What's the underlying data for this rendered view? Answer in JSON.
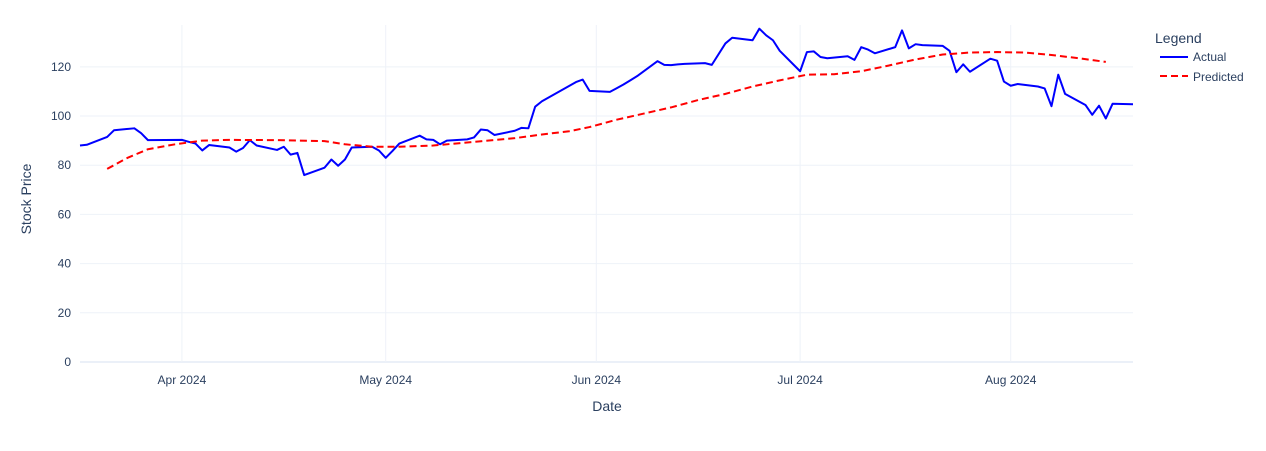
{
  "chart_data": {
    "type": "line",
    "xlabel": "Date",
    "ylabel": "Stock Price",
    "x_tick_labels": [
      "Apr 2024",
      "May 2024",
      "Jun 2024",
      "Jul 2024",
      "Aug 2024"
    ],
    "x_tick_dates": [
      "2024-04-01",
      "2024-05-01",
      "2024-06-01",
      "2024-07-01",
      "2024-08-01"
    ],
    "xlim": [
      "2024-03-17",
      "2024-08-19"
    ],
    "y_ticks": [
      0,
      20,
      40,
      60,
      80,
      100,
      120
    ],
    "ylim": [
      0,
      137
    ],
    "grid": true,
    "legend": {
      "title": "Legend",
      "placement": "top-right"
    },
    "series": [
      {
        "name": "Actual",
        "color": "#0000ff",
        "dash": "solid",
        "points": [
          [
            "2024-03-17",
            88
          ],
          [
            "2024-03-18",
            88.3
          ],
          [
            "2024-03-21",
            91.5
          ],
          [
            "2024-03-22",
            94.2
          ],
          [
            "2024-03-25",
            95
          ],
          [
            "2024-03-26",
            93
          ],
          [
            "2024-03-27",
            90.2
          ],
          [
            "2024-04-01",
            90.3
          ],
          [
            "2024-04-02",
            89.5
          ],
          [
            "2024-04-03",
            88.8
          ],
          [
            "2024-04-04",
            86
          ],
          [
            "2024-04-05",
            88.2
          ],
          [
            "2024-04-08",
            87.2
          ],
          [
            "2024-04-09",
            85.5
          ],
          [
            "2024-04-10",
            87
          ],
          [
            "2024-04-11",
            90.2
          ],
          [
            "2024-04-12",
            88
          ],
          [
            "2024-04-15",
            86.2
          ],
          [
            "2024-04-16",
            87.5
          ],
          [
            "2024-04-17",
            84.3
          ],
          [
            "2024-04-18",
            85
          ],
          [
            "2024-04-19",
            76
          ],
          [
            "2024-04-22",
            79
          ],
          [
            "2024-04-23",
            82.3
          ],
          [
            "2024-04-24",
            79.8
          ],
          [
            "2024-04-25",
            82.3
          ],
          [
            "2024-04-26",
            87.2
          ],
          [
            "2024-04-29",
            87.5
          ],
          [
            "2024-04-30",
            86
          ],
          [
            "2024-05-01",
            83
          ],
          [
            "2024-05-02",
            85.8
          ],
          [
            "2024-05-03",
            88.8
          ],
          [
            "2024-05-06",
            92
          ],
          [
            "2024-05-07",
            90.5
          ],
          [
            "2024-05-08",
            90.3
          ],
          [
            "2024-05-09",
            88.5
          ],
          [
            "2024-05-10",
            90
          ],
          [
            "2024-05-13",
            90.5
          ],
          [
            "2024-05-14",
            91.3
          ],
          [
            "2024-05-15",
            94.5
          ],
          [
            "2024-05-16",
            94.2
          ],
          [
            "2024-05-17",
            92.3
          ],
          [
            "2024-05-20",
            94
          ],
          [
            "2024-05-21",
            95.2
          ],
          [
            "2024-05-22",
            95
          ],
          [
            "2024-05-23",
            103.8
          ],
          [
            "2024-05-24",
            106
          ],
          [
            "2024-05-29",
            113.8
          ],
          [
            "2024-05-30",
            114.8
          ],
          [
            "2024-05-31",
            110.2
          ],
          [
            "2024-06-03",
            109.8
          ],
          [
            "2024-06-04",
            111.3
          ],
          [
            "2024-06-05",
            112.8
          ],
          [
            "2024-06-06",
            114.5
          ],
          [
            "2024-06-07",
            116.2
          ],
          [
            "2024-06-10",
            122.3
          ],
          [
            "2024-06-11",
            120.8
          ],
          [
            "2024-06-12",
            120.7
          ],
          [
            "2024-06-13",
            121
          ],
          [
            "2024-06-14",
            121.2
          ],
          [
            "2024-06-17",
            121.5
          ],
          [
            "2024-06-18",
            120.8
          ],
          [
            "2024-06-20",
            129.5
          ],
          [
            "2024-06-21",
            131.8
          ],
          [
            "2024-06-24",
            130.8
          ],
          [
            "2024-06-25",
            135.5
          ],
          [
            "2024-06-26",
            132.8
          ],
          [
            "2024-06-27",
            130.8
          ],
          [
            "2024-06-28",
            126.5
          ],
          [
            "2024-07-01",
            118.2
          ],
          [
            "2024-07-02",
            126
          ],
          [
            "2024-07-03",
            126.3
          ],
          [
            "2024-07-04",
            124
          ],
          [
            "2024-07-05",
            123.5
          ],
          [
            "2024-07-08",
            124.3
          ],
          [
            "2024-07-09",
            122.8
          ],
          [
            "2024-07-10",
            128
          ],
          [
            "2024-07-11",
            127
          ],
          [
            "2024-07-12",
            125.5
          ],
          [
            "2024-07-15",
            128
          ],
          [
            "2024-07-16",
            134.8
          ],
          [
            "2024-07-17",
            127.5
          ],
          [
            "2024-07-18",
            129.2
          ],
          [
            "2024-07-19",
            128.8
          ],
          [
            "2024-07-22",
            128.5
          ],
          [
            "2024-07-23",
            126.5
          ],
          [
            "2024-07-24",
            117.8
          ],
          [
            "2024-07-25",
            121
          ],
          [
            "2024-07-26",
            118
          ],
          [
            "2024-07-29",
            123.3
          ],
          [
            "2024-07-30",
            122.5
          ],
          [
            "2024-07-31",
            114
          ],
          [
            "2024-08-01",
            112.3
          ],
          [
            "2024-08-02",
            113
          ],
          [
            "2024-08-05",
            112
          ],
          [
            "2024-08-06",
            111.2
          ],
          [
            "2024-08-07",
            104
          ],
          [
            "2024-08-08",
            116.8
          ],
          [
            "2024-08-09",
            109
          ],
          [
            "2024-08-12",
            104.5
          ],
          [
            "2024-08-13",
            100.5
          ],
          [
            "2024-08-14",
            104.2
          ],
          [
            "2024-08-15",
            99
          ],
          [
            "2024-08-16",
            105
          ],
          [
            "2024-08-19",
            104.8
          ]
        ]
      },
      {
        "name": "Predicted",
        "color": "#ff0000",
        "dash": "dashed",
        "points": [
          [
            "2024-03-21",
            78.5
          ],
          [
            "2024-03-24",
            83
          ],
          [
            "2024-03-27",
            86.5
          ],
          [
            "2024-03-31",
            88.5
          ],
          [
            "2024-04-04",
            90
          ],
          [
            "2024-04-08",
            90.3
          ],
          [
            "2024-04-15",
            90.2
          ],
          [
            "2024-04-22",
            89.8
          ],
          [
            "2024-04-25",
            88.5
          ],
          [
            "2024-04-29",
            87.5
          ],
          [
            "2024-05-03",
            87.5
          ],
          [
            "2024-05-08",
            88
          ],
          [
            "2024-05-12",
            89
          ],
          [
            "2024-05-16",
            90
          ],
          [
            "2024-05-20",
            91
          ],
          [
            "2024-05-24",
            92.5
          ],
          [
            "2024-05-28",
            93.8
          ],
          [
            "2024-05-31",
            95.5
          ],
          [
            "2024-06-04",
            98.5
          ],
          [
            "2024-06-08",
            101
          ],
          [
            "2024-06-12",
            103.5
          ],
          [
            "2024-06-16",
            106.5
          ],
          [
            "2024-06-20",
            109
          ],
          [
            "2024-06-24",
            112
          ],
          [
            "2024-06-28",
            114.5
          ],
          [
            "2024-07-02",
            116.8
          ],
          [
            "2024-07-06",
            117
          ],
          [
            "2024-07-10",
            118.2
          ],
          [
            "2024-07-14",
            120.5
          ],
          [
            "2024-07-18",
            123
          ],
          [
            "2024-07-22",
            125
          ],
          [
            "2024-07-26",
            125.8
          ],
          [
            "2024-07-30",
            126
          ],
          [
            "2024-08-03",
            125.8
          ],
          [
            "2024-08-07",
            124.8
          ],
          [
            "2024-08-11",
            123.5
          ],
          [
            "2024-08-15",
            122
          ]
        ]
      }
    ]
  }
}
